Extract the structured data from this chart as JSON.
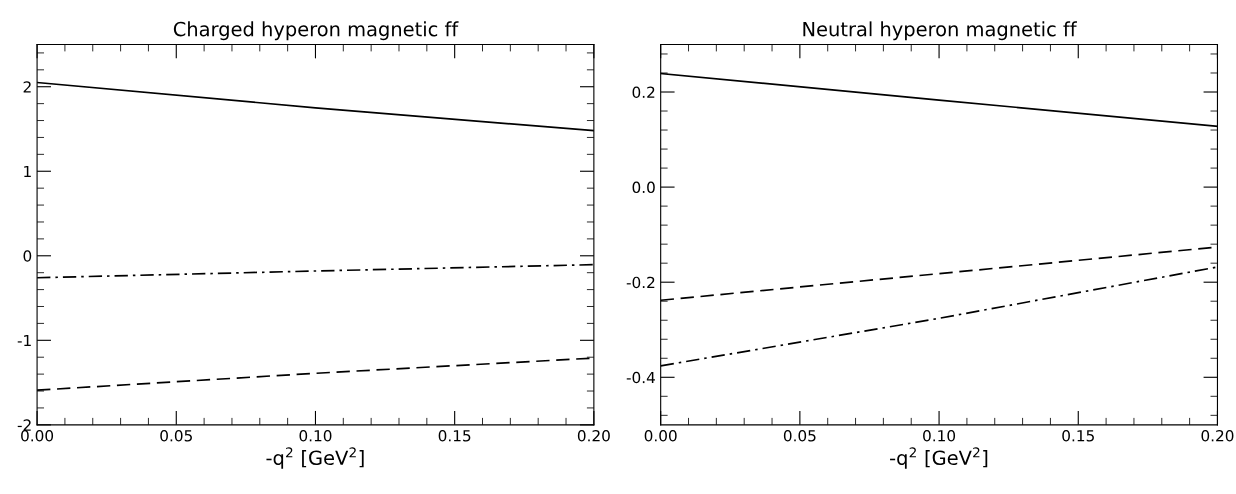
{
  "chart_data": [
    {
      "type": "line",
      "title": "Charged hyperon magnetic ff",
      "xlabel": "-q$^{2}$ [GeV$^{2}$]",
      "x": [
        0,
        0.1,
        0.2
      ],
      "series": [
        {
          "color": "#000000",
          "line_style": "solid",
          "values": [
            2.05,
            1.75,
            1.48
          ]
        },
        {
          "color": "#000000",
          "line_style": "dashdot",
          "values": [
            -0.26,
            -0.18,
            -0.105
          ]
        },
        {
          "color": "#000000",
          "line_style": "dashed",
          "values": [
            -1.59,
            -1.39,
            -1.21
          ]
        }
      ],
      "xlim": [
        0,
        0.2
      ],
      "ylim": [
        -2,
        2.5
      ],
      "xticks": [
        {
          "value": 0,
          "label": "0.00"
        },
        {
          "value": 0.05,
          "label": "0.05"
        },
        {
          "value": 0.1,
          "label": "0.10"
        },
        {
          "value": 0.15,
          "label": "0.15"
        },
        {
          "value": 0.2,
          "label": "0.20"
        },
        {
          "value": 0.01,
          "label": null
        },
        {
          "value": 0.02,
          "label": null
        },
        {
          "value": 0.03,
          "label": null
        },
        {
          "value": 0.04,
          "label": null
        },
        {
          "value": 0.06,
          "label": null
        },
        {
          "value": 0.07,
          "label": null
        },
        {
          "value": 0.08,
          "label": null
        },
        {
          "value": 0.09,
          "label": null
        },
        {
          "value": 0.11,
          "label": null
        },
        {
          "value": 0.12,
          "label": null
        },
        {
          "value": 0.13,
          "label": null
        },
        {
          "value": 0.14,
          "label": null
        },
        {
          "value": 0.16,
          "label": null
        },
        {
          "value": 0.17,
          "label": null
        },
        {
          "value": 0.18,
          "label": null
        },
        {
          "value": 0.19,
          "label": null
        }
      ],
      "yticks": [
        -2,
        -1,
        0,
        1,
        2,
        {
          "value": -1.8,
          "label": null
        },
        {
          "value": -1.6,
          "label": null
        },
        {
          "value": -1.4,
          "label": null
        },
        {
          "value": -1.2,
          "label": null
        },
        {
          "value": -0.8,
          "label": null
        },
        {
          "value": -0.6,
          "label": null
        },
        {
          "value": -0.4,
          "label": null
        },
        {
          "value": -0.2,
          "label": null
        },
        {
          "value": 0.2,
          "label": null
        },
        {
          "value": 0.4,
          "label": null
        },
        {
          "value": 0.6,
          "label": null
        },
        {
          "value": 0.8,
          "label": null
        },
        {
          "value": 1.2,
          "label": null
        },
        {
          "value": 1.4,
          "label": null
        },
        {
          "value": 1.6,
          "label": null
        },
        {
          "value": 1.8,
          "label": null
        },
        {
          "value": 2.2,
          "label": null
        },
        {
          "value": 2.4,
          "label": null
        }
      ],
      "grid": false,
      "legend": false
    },
    {
      "type": "line",
      "title": "Neutral hyperon magnetic ff",
      "xlabel": "-q$^{2}$ [GeV$^{2}$]",
      "x": [
        0,
        0.1,
        0.2
      ],
      "series": [
        {
          "color": "#000000",
          "line_style": "solid",
          "values": [
            0.239,
            0.183,
            0.128
          ]
        },
        {
          "color": "#000000",
          "line_style": "dashed",
          "values": [
            -0.238,
            -0.182,
            -0.126
          ]
        },
        {
          "color": "#000000",
          "line_style": "dashdot",
          "values": [
            -0.376,
            -0.276,
            -0.168
          ]
        }
      ],
      "xlim": [
        0,
        0.2
      ],
      "ylim": [
        -0.5,
        0.3
      ],
      "xticks": [
        {
          "value": 0,
          "label": "0.00"
        },
        {
          "value": 0.05,
          "label": "0.05"
        },
        {
          "value": 0.1,
          "label": "0.10"
        },
        {
          "value": 0.15,
          "label": "0.15"
        },
        {
          "value": 0.2,
          "label": "0.20"
        },
        {
          "value": 0.01,
          "label": null
        },
        {
          "value": 0.02,
          "label": null
        },
        {
          "value": 0.03,
          "label": null
        },
        {
          "value": 0.04,
          "label": null
        },
        {
          "value": 0.06,
          "label": null
        },
        {
          "value": 0.07,
          "label": null
        },
        {
          "value": 0.08,
          "label": null
        },
        {
          "value": 0.09,
          "label": null
        },
        {
          "value": 0.11,
          "label": null
        },
        {
          "value": 0.12,
          "label": null
        },
        {
          "value": 0.13,
          "label": null
        },
        {
          "value": 0.14,
          "label": null
        },
        {
          "value": 0.16,
          "label": null
        },
        {
          "value": 0.17,
          "label": null
        },
        {
          "value": 0.18,
          "label": null
        },
        {
          "value": 0.19,
          "label": null
        }
      ],
      "yticks": [
        {
          "value": -0.4,
          "label": "-0.4"
        },
        {
          "value": -0.2,
          "label": "-0.2"
        },
        {
          "value": 0,
          "label": "0.0"
        },
        {
          "value": 0.2,
          "label": "0.2"
        },
        {
          "value": -0.48,
          "label": null
        },
        {
          "value": -0.44,
          "label": null
        },
        {
          "value": -0.36,
          "label": null
        },
        {
          "value": -0.32,
          "label": null
        },
        {
          "value": -0.28,
          "label": null
        },
        {
          "value": -0.24,
          "label": null
        },
        {
          "value": -0.16,
          "label": null
        },
        {
          "value": -0.12,
          "label": null
        },
        {
          "value": -0.08,
          "label": null
        },
        {
          "value": -0.04,
          "label": null
        },
        {
          "value": 0.04,
          "label": null
        },
        {
          "value": 0.08,
          "label": null
        },
        {
          "value": 0.12,
          "label": null
        },
        {
          "value": 0.16,
          "label": null
        },
        {
          "value": 0.24,
          "label": null
        },
        {
          "value": 0.28,
          "label": null
        }
      ],
      "grid": false,
      "legend": false
    }
  ]
}
